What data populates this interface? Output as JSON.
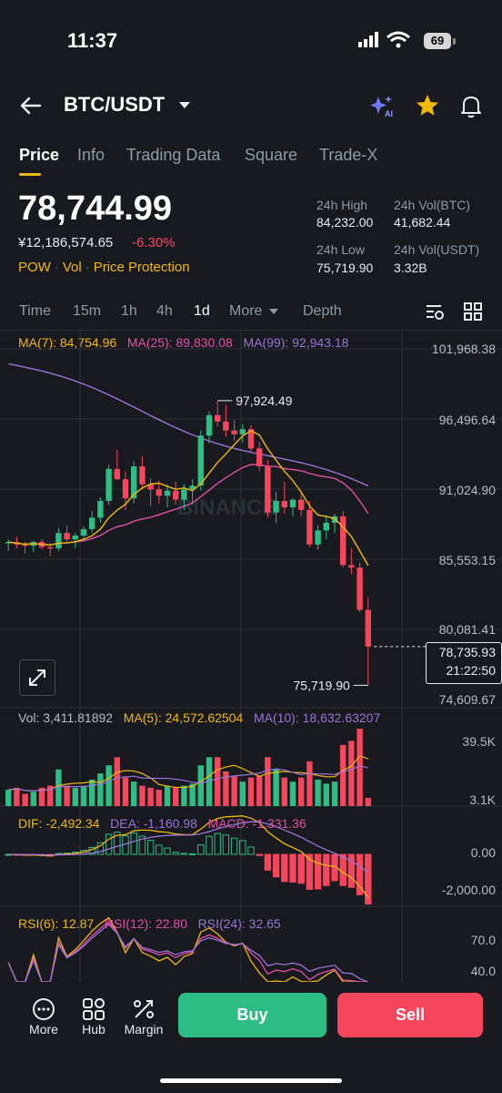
{
  "status": {
    "time": "11:37",
    "battery": "69"
  },
  "header": {
    "pair": "BTC/USDT"
  },
  "tabs": [
    "Price",
    "Info",
    "Trading Data",
    "Square",
    "Trade-X"
  ],
  "ticker": {
    "last": "78,744.99",
    "cny": "¥12,186,574.65",
    "change": "-6.30%",
    "tags": [
      "POW",
      "Vol",
      "Price Protection"
    ],
    "high_label": "24h High",
    "high": "84,232.00",
    "vol_btc_label": "24h Vol(BTC)",
    "vol_btc": "41,682.44",
    "low_label": "24h Low",
    "low": "75,719.90",
    "vol_usdt_label": "24h Vol(USDT)",
    "vol_usdt": "3.32B"
  },
  "timeframes": {
    "items": [
      "Time",
      "15m",
      "1h",
      "4h",
      "1d",
      "More",
      "Depth"
    ],
    "active": "1d"
  },
  "ma_legend": {
    "ma7": "MA(7): 84,754.96",
    "ma25": "MA(25): 89,830.08",
    "ma99": "MA(99): 92,943.18"
  },
  "vol_legend": {
    "vol": "Vol: 3,411.81892",
    "ma5": "MA(5): 24,572.62504",
    "ma10": "MA(10): 18,632.63207"
  },
  "macd_legend": {
    "dif": "DIF: -2,492.34",
    "dea": "DEA: -1,160.98",
    "macd": "MACD: -1,331.36"
  },
  "rsi_legend": {
    "rsi6": "RSI(6): 12.87",
    "rsi12": "RSI(12): 22.80",
    "rsi24": "RSI(24): 32.65"
  },
  "colors": {
    "up": "#2ebd85",
    "down": "#f6465d",
    "ma7": "#f0b90b",
    "ma25": "#e44fa8",
    "ma99": "#9b74d8",
    "accent": "#f0b90b"
  },
  "chart_data": {
    "type": "candlestick",
    "price_axis": [
      "101,968.38",
      "96,496.64",
      "91,024.90",
      "85,553.15",
      "80,081.41",
      "74,609.67"
    ],
    "ylim": [
      74609.67,
      101968.38
    ],
    "high_marker": "97,924.49",
    "low_marker": "75,719.90",
    "current_price": "78,735.93",
    "countdown": "21:22:50",
    "watermark": "BINANCE",
    "candles": [
      [
        86800,
        87100,
        86200,
        86900
      ],
      [
        86900,
        87300,
        86400,
        86700
      ],
      [
        86700,
        86900,
        86000,
        86600
      ],
      [
        86600,
        87000,
        86100,
        86900
      ],
      [
        86900,
        87100,
        86300,
        86500
      ],
      [
        86500,
        86800,
        85800,
        86400
      ],
      [
        86400,
        88000,
        86200,
        87600
      ],
      [
        87600,
        88200,
        86900,
        87100
      ],
      [
        87100,
        87600,
        86400,
        87400
      ],
      [
        87400,
        88100,
        87000,
        87900
      ],
      [
        87900,
        89300,
        87600,
        88800
      ],
      [
        88800,
        90400,
        88400,
        90100
      ],
      [
        90100,
        92900,
        89800,
        92600
      ],
      [
        92600,
        94100,
        91700,
        91800
      ],
      [
        91800,
        92400,
        89400,
        90300
      ],
      [
        90300,
        93200,
        89900,
        92800
      ],
      [
        92800,
        93600,
        91000,
        91400
      ],
      [
        91400,
        91900,
        89700,
        91000
      ],
      [
        91000,
        91700,
        89900,
        90500
      ],
      [
        90500,
        91400,
        89600,
        90900
      ],
      [
        90900,
        91600,
        89800,
        90200
      ],
      [
        90200,
        91400,
        89400,
        91000
      ],
      [
        91000,
        91800,
        89800,
        91300
      ],
      [
        91300,
        95600,
        90900,
        95200
      ],
      [
        95200,
        97100,
        94600,
        96800
      ],
      [
        96800,
        97924,
        95900,
        96300
      ],
      [
        96300,
        97600,
        95100,
        95600
      ],
      [
        95600,
        96400,
        94800,
        95300
      ],
      [
        95300,
        96100,
        94700,
        95700
      ],
      [
        95700,
        96000,
        93900,
        94200
      ],
      [
        94200,
        94700,
        92400,
        92800
      ],
      [
        92800,
        93300,
        88800,
        89200
      ],
      [
        89200,
        90800,
        88400,
        90100
      ],
      [
        90100,
        91600,
        89100,
        89600
      ],
      [
        89600,
        90300,
        88900,
        90200
      ],
      [
        90200,
        90800,
        88900,
        89400
      ],
      [
        89400,
        90100,
        86500,
        86700
      ],
      [
        86700,
        88200,
        86300,
        87800
      ],
      [
        87800,
        89000,
        87100,
        88400
      ],
      [
        88400,
        89100,
        87600,
        88900
      ],
      [
        88900,
        89300,
        84900,
        85100
      ],
      [
        85100,
        86400,
        84400,
        84900
      ],
      [
        84900,
        85300,
        81400,
        81600
      ],
      [
        81600,
        82600,
        75720,
        78736
      ]
    ],
    "volume": [
      8,
      9,
      6,
      7,
      9,
      10,
      18,
      10,
      9,
      10,
      13,
      16,
      20,
      24,
      14,
      12,
      10,
      9,
      8,
      10,
      9,
      10,
      11,
      20,
      24,
      24,
      17,
      15,
      12,
      14,
      15,
      24,
      18,
      14,
      12,
      14,
      22,
      13,
      11,
      12,
      30,
      32,
      38,
      4
    ],
    "vol_axis": [
      "39.5K",
      "3.1K"
    ],
    "macd_axis": [
      "0.00",
      "-2,000.00"
    ],
    "rsi_axis": [
      "70.0",
      "40.0"
    ]
  },
  "bottom": {
    "more": "More",
    "hub": "Hub",
    "margin": "Margin",
    "buy": "Buy",
    "sell": "Sell"
  }
}
